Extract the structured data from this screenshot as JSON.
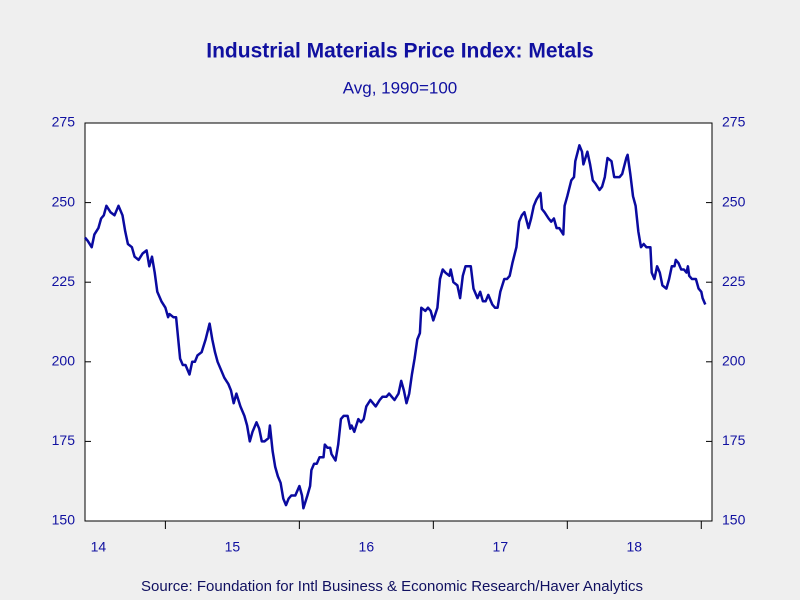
{
  "chart_data": {
    "type": "line",
    "title": "Industrial Materials Price Index: Metals",
    "subtitle": "Avg, 1990=100",
    "source": "Source:  Foundation for Intl Business & Economic Research/Haver Analytics",
    "color": "#0a0aa0",
    "xlim": [
      14.4,
      19.08
    ],
    "xticks": [
      15,
      16,
      17,
      18,
      19
    ],
    "year_labels": [
      "14",
      "15",
      "16",
      "17",
      "18"
    ],
    "ylim": [
      150,
      275
    ],
    "yticks": [
      150,
      175,
      200,
      225,
      250,
      275
    ],
    "y2lim": [
      150,
      275
    ],
    "y2ticks": [
      150,
      175,
      200,
      225,
      250,
      275
    ],
    "grid": false,
    "x": [
      14.4,
      14.42,
      14.45,
      14.47,
      14.5,
      14.52,
      14.54,
      14.56,
      14.59,
      14.62,
      14.65,
      14.68,
      14.7,
      14.72,
      14.75,
      14.77,
      14.8,
      14.83,
      14.86,
      14.88,
      14.9,
      14.92,
      14.94,
      14.97,
      15.0,
      15.02,
      15.03,
      15.06,
      15.08,
      15.11,
      15.13,
      15.15,
      15.18,
      15.2,
      15.22,
      15.24,
      15.27,
      15.3,
      15.33,
      15.35,
      15.37,
      15.39,
      15.41,
      15.44,
      15.47,
      15.49,
      15.51,
      15.53,
      15.56,
      15.59,
      15.61,
      15.63,
      15.65,
      15.68,
      15.7,
      15.72,
      15.74,
      15.77,
      15.78,
      15.8,
      15.82,
      15.84,
      15.86,
      15.88,
      15.9,
      15.92,
      15.94,
      15.97,
      15.99,
      16.0,
      16.02,
      16.03,
      16.06,
      16.08,
      16.09,
      16.11,
      16.13,
      16.15,
      16.18,
      16.19,
      16.21,
      16.23,
      16.24,
      16.27,
      16.29,
      16.31,
      16.33,
      16.36,
      16.38,
      16.39,
      16.41,
      16.44,
      16.46,
      16.48,
      16.5,
      16.53,
      16.55,
      16.57,
      16.6,
      16.62,
      16.65,
      16.67,
      16.69,
      16.71,
      16.74,
      16.76,
      16.78,
      16.8,
      16.82,
      16.84,
      16.86,
      16.88,
      16.9,
      16.91,
      16.94,
      16.96,
      16.98,
      17.0,
      17.03,
      17.05,
      17.07,
      17.09,
      17.12,
      17.13,
      17.15,
      17.18,
      17.2,
      17.22,
      17.24,
      17.27,
      17.28,
      17.3,
      17.33,
      17.35,
      17.37,
      17.39,
      17.41,
      17.44,
      17.46,
      17.48,
      17.5,
      17.53,
      17.55,
      17.57,
      17.59,
      17.62,
      17.64,
      17.66,
      17.68,
      17.71,
      17.73,
      17.75,
      17.77,
      17.8,
      17.81,
      17.83,
      17.86,
      17.88,
      17.9,
      17.92,
      17.94,
      17.97,
      17.98,
      18.0,
      18.03,
      18.05,
      18.06,
      18.09,
      18.11,
      18.12,
      18.15,
      18.17,
      18.19,
      18.21,
      18.24,
      18.26,
      18.28,
      18.3,
      18.33,
      18.35,
      18.37,
      18.39,
      18.41,
      18.44,
      18.45,
      18.47,
      18.49,
      18.51,
      18.53,
      18.55,
      18.57,
      18.59,
      18.62,
      18.63,
      18.65,
      18.67,
      18.69,
      18.71,
      18.74,
      18.76,
      18.78,
      18.8,
      18.81,
      18.83,
      18.85,
      18.87,
      18.89,
      18.9,
      18.91,
      18.93,
      18.96,
      18.98,
      19.0,
      19.01,
      19.03
    ],
    "values": [
      239,
      238,
      236,
      240,
      242,
      245,
      246,
      249,
      247,
      246,
      249,
      246,
      241,
      237,
      236,
      233,
      232,
      234,
      235,
      230,
      233,
      228,
      222,
      219,
      217,
      214,
      215,
      214,
      214,
      201,
      199,
      199,
      196,
      200,
      200,
      202,
      203,
      207,
      212,
      207,
      203,
      200,
      198,
      195,
      193,
      191,
      187,
      190,
      186,
      183,
      180,
      175,
      178,
      181,
      179,
      175,
      175,
      176,
      180,
      172,
      167,
      164,
      162,
      157,
      155,
      157,
      158,
      158,
      160,
      161,
      158,
      154,
      158,
      161,
      166,
      168,
      168,
      170,
      170,
      174,
      173,
      173,
      171,
      169,
      174,
      182,
      183,
      183,
      179,
      180,
      178,
      182,
      181,
      182,
      186,
      188,
      187,
      186,
      188,
      189,
      189,
      190,
      189,
      188,
      190,
      194,
      191,
      187,
      190,
      196,
      201,
      207,
      209,
      217,
      216,
      217,
      216,
      213,
      217,
      226,
      229,
      228,
      227,
      229,
      225,
      224,
      220,
      227,
      230,
      230,
      230,
      223,
      220,
      222,
      219,
      219,
      221,
      218,
      217,
      217,
      222,
      226,
      226,
      227,
      231,
      236,
      244,
      246,
      247,
      242,
      245,
      249,
      251,
      253,
      248,
      247,
      245,
      244,
      245,
      242,
      242,
      240,
      249,
      252,
      257,
      258,
      263,
      268,
      266,
      262,
      266,
      262,
      257,
      256,
      254,
      255,
      258,
      264,
      263,
      258,
      258,
      258,
      259,
      264,
      265,
      259,
      252,
      249,
      241,
      236,
      237,
      236,
      236,
      228,
      226,
      230,
      228,
      224,
      223,
      226,
      230,
      230,
      232,
      231,
      229,
      229,
      228,
      230,
      227,
      226,
      226,
      223,
      222,
      220,
      218
    ]
  }
}
